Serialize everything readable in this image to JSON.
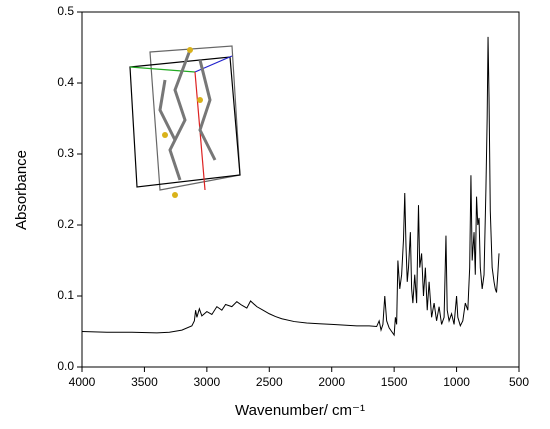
{
  "chart_data": {
    "type": "line",
    "x_label": "Wavenumber/ cm⁻¹",
    "y_label": "Absorbance",
    "color": "#000000",
    "xlim": [
      4000,
      500
    ],
    "ylim": [
      0,
      0.5
    ],
    "xticks": [
      4000,
      3500,
      3000,
      2500,
      2000,
      1500,
      1000,
      500
    ],
    "yticks": [
      {
        "value": 0,
        "label": "0.0"
      },
      0.1,
      0.2,
      0.3,
      0.4,
      0.5
    ],
    "x": [
      4000,
      3800,
      3600,
      3400,
      3300,
      3200,
      3120,
      3100,
      3090,
      3080,
      3060,
      3040,
      3000,
      2960,
      2920,
      2880,
      2850,
      2800,
      2760,
      2720,
      2680,
      2650,
      2600,
      2550,
      2500,
      2450,
      2400,
      2300,
      2200,
      2100,
      2000,
      1900,
      1800,
      1700,
      1640,
      1620,
      1605,
      1590,
      1575,
      1560,
      1540,
      1520,
      1500,
      1490,
      1480,
      1470,
      1455,
      1440,
      1425,
      1415,
      1405,
      1395,
      1385,
      1370,
      1360,
      1350,
      1335,
      1320,
      1305,
      1295,
      1280,
      1265,
      1250,
      1235,
      1220,
      1200,
      1180,
      1160,
      1140,
      1120,
      1100,
      1085,
      1075,
      1060,
      1040,
      1020,
      1000,
      990,
      970,
      950,
      930,
      910,
      895,
      885,
      875,
      860,
      850,
      840,
      830,
      820,
      810,
      795,
      780,
      765,
      755,
      748,
      740,
      730,
      715,
      700,
      690,
      680,
      670,
      660
    ],
    "values": [
      0.05,
      0.049,
      0.049,
      0.048,
      0.049,
      0.052,
      0.058,
      0.065,
      0.08,
      0.07,
      0.082,
      0.072,
      0.078,
      0.074,
      0.085,
      0.08,
      0.088,
      0.085,
      0.092,
      0.087,
      0.083,
      0.093,
      0.085,
      0.08,
      0.075,
      0.071,
      0.068,
      0.064,
      0.062,
      0.061,
      0.06,
      0.059,
      0.058,
      0.058,
      0.057,
      0.065,
      0.052,
      0.06,
      0.1,
      0.065,
      0.055,
      0.05,
      0.045,
      0.07,
      0.06,
      0.15,
      0.11,
      0.13,
      0.18,
      0.245,
      0.17,
      0.12,
      0.14,
      0.19,
      0.11,
      0.09,
      0.13,
      0.09,
      0.228,
      0.14,
      0.16,
      0.1,
      0.14,
      0.08,
      0.12,
      0.07,
      0.09,
      0.065,
      0.085,
      0.06,
      0.07,
      0.185,
      0.08,
      0.065,
      0.075,
      0.06,
      0.1,
      0.07,
      0.058,
      0.065,
      0.09,
      0.08,
      0.14,
      0.27,
      0.15,
      0.19,
      0.13,
      0.24,
      0.2,
      0.21,
      0.14,
      0.11,
      0.13,
      0.25,
      0.35,
      0.465,
      0.38,
      0.22,
      0.14,
      0.12,
      0.11,
      0.105,
      0.13,
      0.16
    ]
  }
}
